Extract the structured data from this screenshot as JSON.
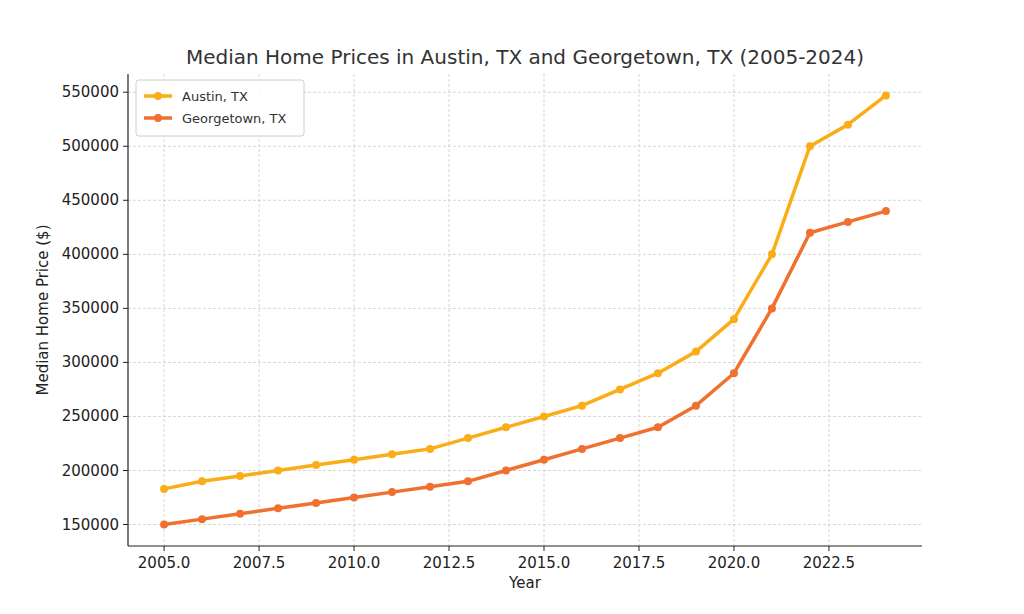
{
  "chart_data": {
    "type": "line",
    "title": "Median Home Prices in Austin, TX and Georgetown, TX (2005-2024)",
    "x_label": "Year",
    "y_label": "Median Home Price ($)",
    "x": [
      2005,
      2006,
      2007,
      2008,
      2009,
      2010,
      2011,
      2012,
      2013,
      2014,
      2015,
      2016,
      2017,
      2018,
      2019,
      2020,
      2021,
      2022,
      2023,
      2024
    ],
    "series": [
      {
        "name": "Austin, TX",
        "color": "#fbad18",
        "marker": "circle",
        "line_style": "solid",
        "values": [
          183000,
          190000,
          195000,
          200000,
          205000,
          210000,
          215000,
          220000,
          230000,
          240000,
          250000,
          260000,
          275000,
          290000,
          310000,
          340000,
          400000,
          500000,
          520000,
          547000
        ]
      },
      {
        "name": "Georgetown, TX",
        "color": "#f07030",
        "marker": "circle",
        "line_style": "solid",
        "values": [
          150000,
          155000,
          160000,
          165000,
          170000,
          175000,
          180000,
          185000,
          190000,
          200000,
          210000,
          220000,
          230000,
          240000,
          260000,
          290000,
          350000,
          420000,
          430000,
          440000
        ]
      }
    ],
    "xlim": [
      2004.05,
      2024.95
    ],
    "ylim": [
      130150,
      566850
    ],
    "xticks": [
      {
        "value": 2005,
        "label": "2005.0"
      },
      {
        "value": 2007.5,
        "label": "2007.5"
      },
      {
        "value": 2010,
        "label": "2010.0"
      },
      {
        "value": 2012.5,
        "label": "2012.5"
      },
      {
        "value": 2015,
        "label": "2015.0"
      },
      {
        "value": 2017.5,
        "label": "2017.5"
      },
      {
        "value": 2020,
        "label": "2020.0"
      },
      {
        "value": 2022.5,
        "label": "2022.5"
      }
    ],
    "yticks": [
      150000,
      200000,
      250000,
      300000,
      350000,
      400000,
      450000,
      500000,
      550000
    ],
    "grid": true,
    "legend": "upper-left"
  }
}
